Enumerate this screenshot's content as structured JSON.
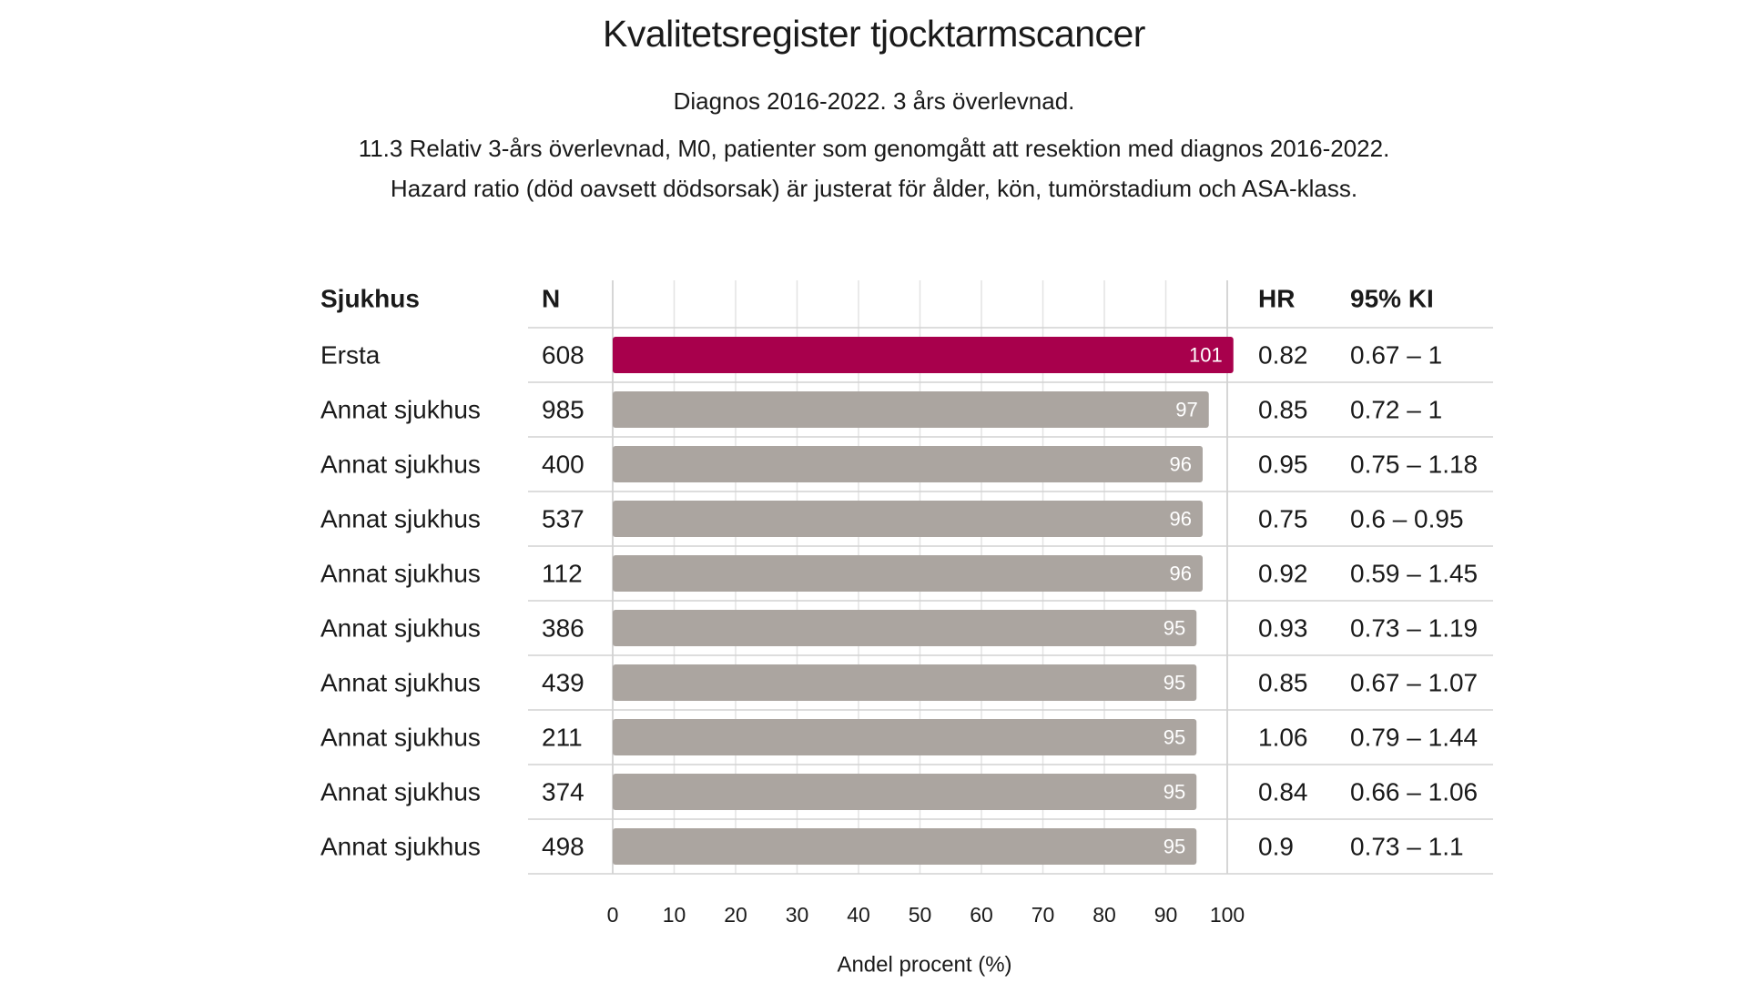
{
  "header": {
    "title": "Kvalitetsregister tjocktarmscancer",
    "subtitle": "Diagnos 2016-2022. 3 års överlevnad.",
    "description_line1": "11.3 Relativ 3-års överlevnad, M0, patienter som genomgått att resektion med diagnos 2016-2022.",
    "description_line2": "Hazard ratio (död oavsett dödsorsak) är justerat för ålder, kön, tumörstadium och ASA-klass."
  },
  "chart_data": {
    "type": "bar",
    "orientation": "horizontal",
    "columns": {
      "hospital": "Sjukhus",
      "n": "N",
      "hr": "HR",
      "ci": "95% KI"
    },
    "xlabel": "Andel procent (%)",
    "xlim": [
      0,
      100
    ],
    "xticks": [
      0,
      10,
      20,
      30,
      40,
      50,
      60,
      70,
      80,
      90,
      100
    ],
    "grid": true,
    "highlight_color": "#a8004c",
    "bar_color": "#aba5a0",
    "rows": [
      {
        "hospital": "Ersta",
        "n": 608,
        "value": 101,
        "hr": "0.82",
        "ci": "0.67 – 1",
        "highlight": true
      },
      {
        "hospital": "Annat sjukhus",
        "n": 985,
        "value": 97,
        "hr": "0.85",
        "ci": "0.72 – 1",
        "highlight": false
      },
      {
        "hospital": "Annat sjukhus",
        "n": 400,
        "value": 96,
        "hr": "0.95",
        "ci": "0.75 – 1.18",
        "highlight": false
      },
      {
        "hospital": "Annat sjukhus",
        "n": 537,
        "value": 96,
        "hr": "0.75",
        "ci": "0.6 – 0.95",
        "highlight": false
      },
      {
        "hospital": "Annat sjukhus",
        "n": 112,
        "value": 96,
        "hr": "0.92",
        "ci": "0.59 – 1.45",
        "highlight": false
      },
      {
        "hospital": "Annat sjukhus",
        "n": 386,
        "value": 95,
        "hr": "0.93",
        "ci": "0.73 – 1.19",
        "highlight": false
      },
      {
        "hospital": "Annat sjukhus",
        "n": 439,
        "value": 95,
        "hr": "0.85",
        "ci": "0.67 – 1.07",
        "highlight": false
      },
      {
        "hospital": "Annat sjukhus",
        "n": 211,
        "value": 95,
        "hr": "1.06",
        "ci": "0.79 – 1.44",
        "highlight": false
      },
      {
        "hospital": "Annat sjukhus",
        "n": 374,
        "value": 95,
        "hr": "0.84",
        "ci": "0.66 – 1.06",
        "highlight": false
      },
      {
        "hospital": "Annat sjukhus",
        "n": 498,
        "value": 95,
        "hr": "0.9",
        "ci": "0.73 – 1.1",
        "highlight": false
      }
    ]
  }
}
